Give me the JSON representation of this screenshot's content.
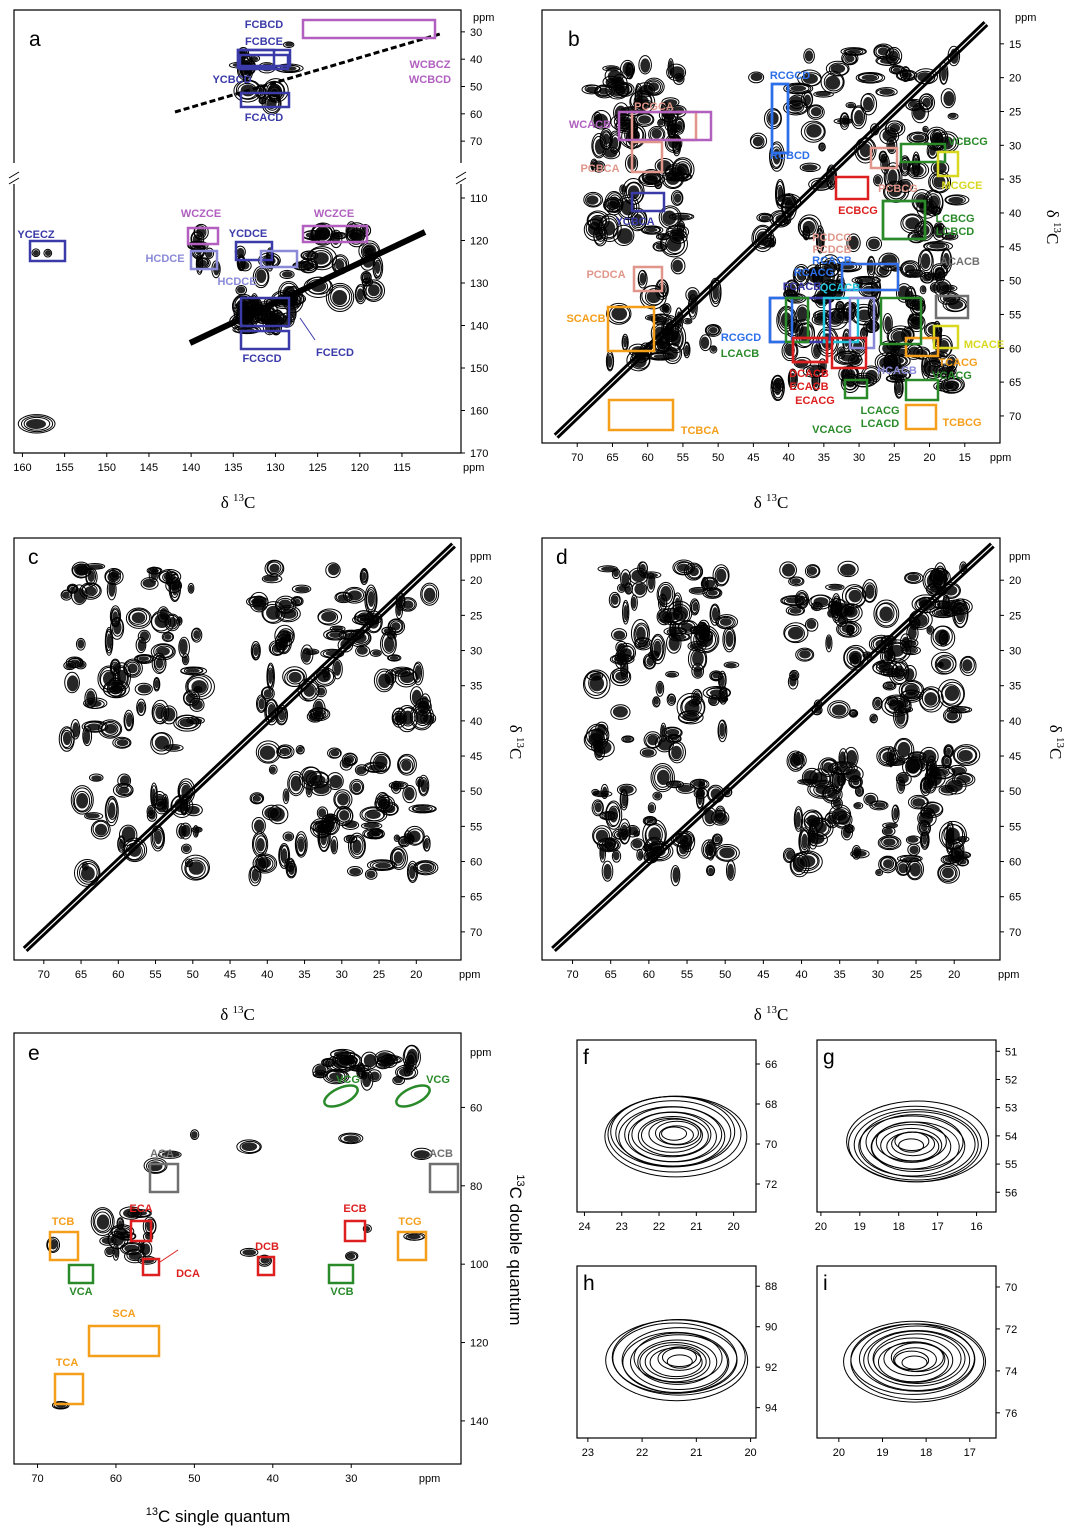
{
  "colors": {
    "navy": "#3a3aa8",
    "lilac": "#8a8ad8",
    "violet": "#b160c0",
    "salmon": "#e0968a",
    "blue": "#2c6fe8",
    "cyan": "#22c4dc",
    "red": "#dd1f1f",
    "green": "#2a8a2a",
    "yellow": "#d8d81e",
    "orange": "#f59e1a",
    "gray": "#707070"
  },
  "axis_text": {
    "ppm": "ppm",
    "delta": "δ",
    "sup13": "13",
    "C": "C",
    "sq_label": "C single quantum",
    "dq_label": "C double quantum"
  },
  "chart_data": [
    {
      "panel": "a",
      "type": "heatmap",
      "xticks": [
        160,
        155,
        150,
        145,
        140,
        135,
        130,
        125,
        120,
        115
      ],
      "yticks_top": [
        30,
        40,
        50,
        60,
        70
      ],
      "yticks_bottom": [
        110,
        120,
        130,
        140,
        150,
        160,
        170
      ],
      "xlim": [
        161,
        108
      ],
      "ylim_top": [
        22,
        78
      ],
      "ylim_bottom": [
        110,
        170
      ],
      "annotations": [
        {
          "label": "FCBCD",
          "color": "navy"
        },
        {
          "label": "FCBCE",
          "color": "navy"
        },
        {
          "label": "YCBCD",
          "color": "navy"
        },
        {
          "label": "FCACD",
          "color": "navy"
        },
        {
          "label": "WCBCZ",
          "color": "violet"
        },
        {
          "label": "WCBCD",
          "color": "violet"
        },
        {
          "label": "YCECZ",
          "color": "navy"
        },
        {
          "label": "WCZCE",
          "color": "violet"
        },
        {
          "label": "YCDCE",
          "color": "navy"
        },
        {
          "label": "WCZCE",
          "color": "violet"
        },
        {
          "label": "HCDCE",
          "color": "lilac"
        },
        {
          "label": "HCDCE",
          "color": "lilac"
        },
        {
          "label": "FCGCD",
          "color": "navy"
        },
        {
          "label": "FCECD",
          "color": "navy"
        }
      ]
    },
    {
      "panel": "b",
      "type": "heatmap",
      "xticks": [
        70,
        65,
        60,
        55,
        50,
        45,
        40,
        35,
        30,
        25,
        20,
        15
      ],
      "yticks": [
        15,
        20,
        25,
        30,
        35,
        40,
        45,
        50,
        55,
        60,
        65,
        70
      ],
      "xlim": [
        75,
        10
      ],
      "ylim": [
        10,
        74
      ],
      "annotations": [
        {
          "label": "RCGCD",
          "color": "blue"
        },
        {
          "label": "RCBCD",
          "color": "blue"
        },
        {
          "label": "PCGCA",
          "color": "salmon"
        },
        {
          "label": "WCACB",
          "color": "violet"
        },
        {
          "label": "PCBCA",
          "color": "salmon"
        },
        {
          "label": "YCBCA",
          "color": "navy"
        },
        {
          "label": "VCBCG",
          "color": "green"
        },
        {
          "label": "PCBCG",
          "color": "salmon"
        },
        {
          "label": "MCGCE",
          "color": "yellow"
        },
        {
          "label": "ECBCG",
          "color": "red"
        },
        {
          "label": "LCBCG",
          "color": "green"
        },
        {
          "label": "LCBCD",
          "color": "green"
        },
        {
          "label": "PCDCB",
          "color": "salmon"
        },
        {
          "label": "PCDCG",
          "color": "salmon"
        },
        {
          "label": "RCACB",
          "color": "blue"
        },
        {
          "label": "RCACG",
          "color": "blue"
        },
        {
          "label": "ACACB",
          "color": "gray"
        },
        {
          "label": "PCDCA",
          "color": "salmon"
        },
        {
          "label": "FCACB",
          "color": "navy"
        },
        {
          "label": "QCACB",
          "color": "cyan"
        },
        {
          "label": "SCACB",
          "color": "orange"
        },
        {
          "label": "RCGCD",
          "color": "blue"
        },
        {
          "label": "MCACE",
          "color": "yellow"
        },
        {
          "label": "LCACB",
          "color": "green"
        },
        {
          "label": "TCACG",
          "color": "orange"
        },
        {
          "label": "DCACB",
          "color": "red"
        },
        {
          "label": "ECACB",
          "color": "red"
        },
        {
          "label": "HCACB",
          "color": "lilac"
        },
        {
          "label": "ECACG",
          "color": "red"
        },
        {
          "label": "VCACG",
          "color": "green"
        },
        {
          "label": "LCACG",
          "color": "green"
        },
        {
          "label": "LCACD",
          "color": "green"
        },
        {
          "label": "VCACG",
          "color": "green"
        },
        {
          "label": "TCBCG",
          "color": "orange"
        },
        {
          "label": "TCBCA",
          "color": "orange"
        }
      ]
    },
    {
      "panel": "c",
      "type": "heatmap",
      "xticks": [
        70,
        65,
        60,
        55,
        50,
        45,
        40,
        35,
        30,
        25,
        20
      ],
      "yticks": [
        20,
        25,
        30,
        35,
        40,
        45,
        50,
        55,
        60,
        65,
        70
      ],
      "xlim": [
        74,
        14
      ],
      "ylim": [
        14,
        74
      ]
    },
    {
      "panel": "d",
      "type": "heatmap",
      "xticks": [
        70,
        65,
        60,
        55,
        50,
        45,
        40,
        35,
        30,
        25,
        20
      ],
      "yticks": [
        20,
        25,
        30,
        35,
        40,
        45,
        50,
        55,
        60,
        65,
        70
      ],
      "xlim": [
        74,
        14
      ],
      "ylim": [
        14,
        74
      ]
    },
    {
      "panel": "e",
      "type": "heatmap",
      "xticks": [
        70,
        60,
        50,
        40,
        30
      ],
      "yticks": [
        60,
        80,
        100,
        120,
        140
      ],
      "xlim": [
        73,
        16
      ],
      "ylim": [
        41,
        151
      ],
      "annotations": [
        {
          "label": "VCG",
          "color": "green"
        },
        {
          "label": "VCG",
          "color": "green"
        },
        {
          "label": "ACA",
          "color": "gray"
        },
        {
          "label": "ACB",
          "color": "gray"
        },
        {
          "label": "ECA",
          "color": "red"
        },
        {
          "label": "ECB",
          "color": "red"
        },
        {
          "label": "TCB",
          "color": "orange"
        },
        {
          "label": "TCG",
          "color": "orange"
        },
        {
          "label": "DCA",
          "color": "red"
        },
        {
          "label": "DCB",
          "color": "red"
        },
        {
          "label": "VCA",
          "color": "green"
        },
        {
          "label": "VCB",
          "color": "green"
        },
        {
          "label": "SCA",
          "color": "orange"
        },
        {
          "label": "TCA",
          "color": "orange"
        }
      ]
    },
    {
      "panel": "f",
      "type": "heatmap",
      "xticks": [
        24,
        23,
        22,
        21,
        20
      ],
      "yticks": [
        66,
        68,
        70,
        72
      ],
      "xlim": [
        24.2,
        19.4
      ],
      "ylim": [
        64.8,
        73.4
      ]
    },
    {
      "panel": "g",
      "type": "heatmap",
      "xticks": [
        20,
        19,
        18,
        17,
        16
      ],
      "yticks": [
        51,
        52,
        53,
        54,
        55,
        56
      ],
      "xlim": [
        20.1,
        15.5
      ],
      "ylim": [
        50.6,
        56.7
      ]
    },
    {
      "panel": "h",
      "type": "heatmap",
      "xticks": [
        23,
        22,
        21,
        20
      ],
      "yticks": [
        88,
        90,
        92,
        94
      ],
      "xlim": [
        23.2,
        19.9
      ],
      "ylim": [
        87.0,
        95.5
      ]
    },
    {
      "panel": "i",
      "type": "heatmap",
      "xticks": [
        20,
        19,
        18,
        17
      ],
      "yticks": [
        70,
        72,
        74,
        76
      ],
      "xlim": [
        20.5,
        16.4
      ],
      "ylim": [
        69.0,
        77.2
      ]
    }
  ]
}
